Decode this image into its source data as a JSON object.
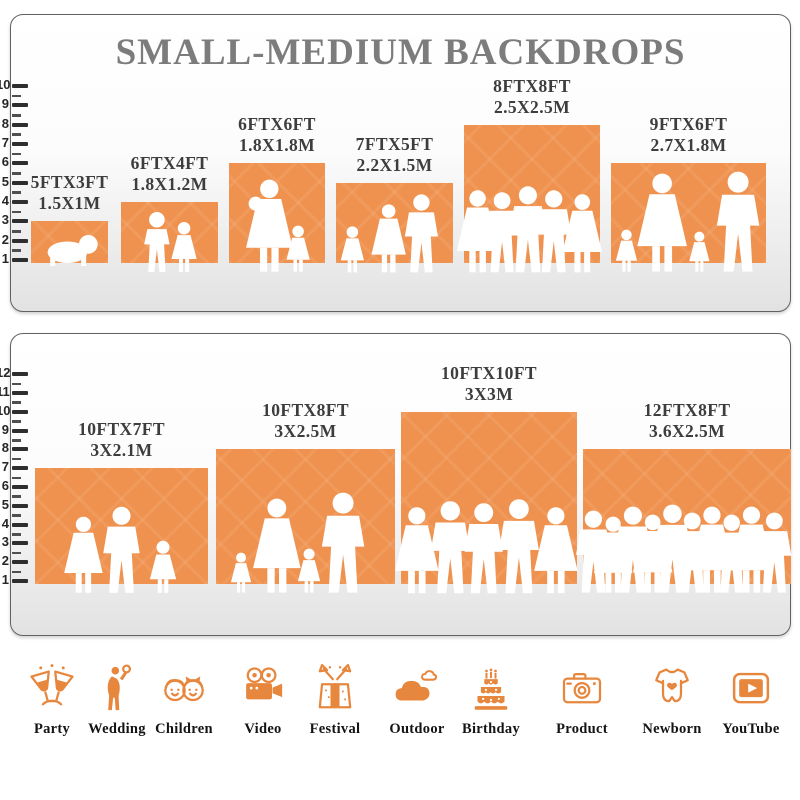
{
  "title": "SMALL-MEDIUM BACKDROPS",
  "colors": {
    "backdrop_orange": "#EF9250",
    "icon_orange": "#E7873E",
    "label_gray": "#3D3D3D",
    "title_gray": "#7C7C7C",
    "silhouette_white": "#FFFFFF"
  },
  "panels": [
    {
      "name": "small-medium-sizes",
      "scale": {
        "min": 1,
        "max": 10,
        "minor_ticks": true
      },
      "items": [
        {
          "size_ft": "5FTX3FT",
          "size_m": "1.5X1M",
          "w_ft": 5,
          "h_ft": 3,
          "figures": [
            "baby"
          ]
        },
        {
          "size_ft": "6FTX4FT",
          "size_m": "1.8X1.2M",
          "w_ft": 6,
          "h_ft": 4,
          "figures": [
            "boy",
            "girl"
          ]
        },
        {
          "size_ft": "6FTX6FT",
          "size_m": "1.8X1.8M",
          "w_ft": 6,
          "h_ft": 6,
          "figures": [
            "mother",
            "girl"
          ]
        },
        {
          "size_ft": "7FTX5FT",
          "size_m": "2.2X1.5M",
          "w_ft": 7,
          "h_ft": 5,
          "figures": [
            "girl",
            "woman",
            "man"
          ]
        },
        {
          "size_ft": "8FTX8FT",
          "size_m": "2.5X2.5M",
          "w_ft": 8,
          "h_ft": 8,
          "figures": [
            "woman",
            "man",
            "man",
            "man",
            "woman"
          ]
        },
        {
          "size_ft": "9FTX6FT",
          "size_m": "2.7X1.8M",
          "w_ft": 9,
          "h_ft": 6,
          "figures": [
            "girl",
            "woman",
            "girl",
            "man"
          ]
        }
      ]
    },
    {
      "name": "medium-large-sizes",
      "scale": {
        "min": 1,
        "max": 12,
        "minor_ticks": true
      },
      "items": [
        {
          "size_ft": "10FTX7FT",
          "size_m": "3X2.1M",
          "w_ft": 10,
          "h_ft": 7,
          "figures": [
            "woman",
            "man",
            "girl"
          ]
        },
        {
          "size_ft": "10FTX8FT",
          "size_m": "3X2.5M",
          "w_ft": 10,
          "h_ft": 8,
          "figures": [
            "girl",
            "woman",
            "girl",
            "man"
          ]
        },
        {
          "size_ft": "10FTX10FT",
          "size_m": "3X3M",
          "w_ft": 10,
          "h_ft": 10,
          "figures": [
            "woman",
            "man",
            "man",
            "man",
            "woman"
          ]
        },
        {
          "size_ft": "12FTX8FT",
          "size_m": "3.6X2.5M",
          "w_ft": 12,
          "h_ft": 8,
          "figures": [
            "man",
            "woman",
            "man",
            "woman",
            "man",
            "man",
            "woman",
            "man",
            "woman",
            "man"
          ]
        }
      ]
    }
  ],
  "categories": [
    {
      "label": "Party",
      "icon": "party-icon"
    },
    {
      "label": "Wedding",
      "icon": "wedding-icon"
    },
    {
      "label": "Children",
      "icon": "children-icon"
    },
    {
      "label": "Video",
      "icon": "video-icon"
    },
    {
      "label": "Festival",
      "icon": "festival-icon"
    },
    {
      "label": "Outdoor",
      "icon": "outdoor-icon"
    },
    {
      "label": "Birthday",
      "icon": "birthday-icon"
    },
    {
      "label": "Product",
      "icon": "product-icon"
    },
    {
      "label": "Newborn",
      "icon": "newborn-icon"
    },
    {
      "label": "YouTube",
      "icon": "youtube-icon"
    }
  ]
}
